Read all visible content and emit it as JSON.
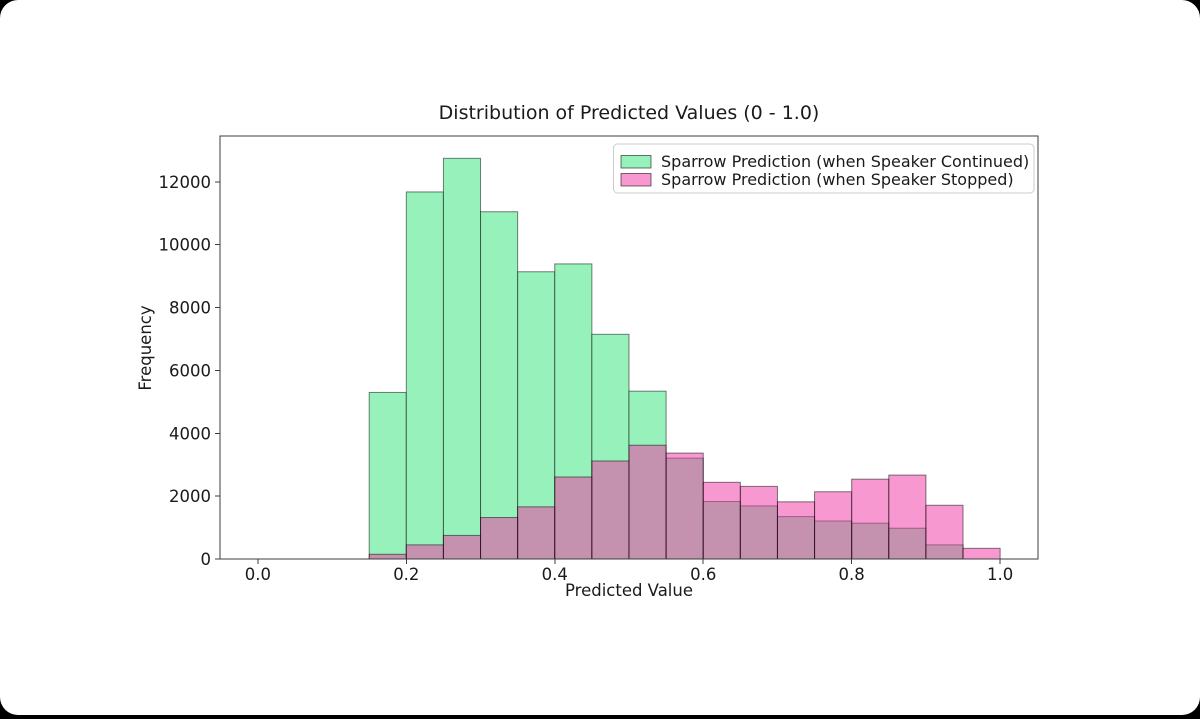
{
  "chart_data": {
    "type": "histogram",
    "title": "Distribution of Predicted Values (0 - 1.0)",
    "xlabel": "Predicted Value",
    "ylabel": "Frequency",
    "grid": false,
    "legend_position": "upper right",
    "bin_start": 0.15,
    "bin_width": 0.05,
    "bin_count": 17,
    "xlim": [
      -0.051,
      1.051
    ],
    "ylim": [
      0,
      13460
    ],
    "xticks": [
      {
        "v": 0.0,
        "label": "0.0"
      },
      {
        "v": 0.2,
        "label": "0.2"
      },
      {
        "v": 0.4,
        "label": "0.4"
      },
      {
        "v": 0.6,
        "label": "0.6"
      },
      {
        "v": 0.8,
        "label": "0.8"
      },
      {
        "v": 1.0,
        "label": "1.0"
      }
    ],
    "yticks": [
      {
        "v": 0,
        "label": "0"
      },
      {
        "v": 2000,
        "label": "2000"
      },
      {
        "v": 4000,
        "label": "4000"
      },
      {
        "v": 6000,
        "label": "6000"
      },
      {
        "v": 8000,
        "label": "8000"
      },
      {
        "v": 10000,
        "label": "10000"
      },
      {
        "v": 12000,
        "label": "12000"
      }
    ],
    "edge_color": "rgba(0,0,0,0.5)",
    "overlap_color": "#C391AE",
    "series": [
      {
        "name": "Sparrow Prediction (when Speaker Continued)",
        "fill_solid": "#96F1BB",
        "fill_legend": "#96F1BB",
        "values": [
          5300,
          11680,
          12750,
          11050,
          9140,
          9390,
          7150,
          5340,
          3210,
          1830,
          1690,
          1350,
          1210,
          1140,
          980,
          450,
          0
        ]
      },
      {
        "name": "Sparrow Prediction (when Speaker Stopped)",
        "fill_overlay": "rgba(241,49,161,0.5)",
        "fill_legend": "#F898D0",
        "values": [
          150,
          450,
          750,
          1320,
          1660,
          2610,
          3120,
          3620,
          3370,
          2440,
          2310,
          1820,
          2140,
          2540,
          2670,
          1710,
          340
        ]
      }
    ]
  }
}
